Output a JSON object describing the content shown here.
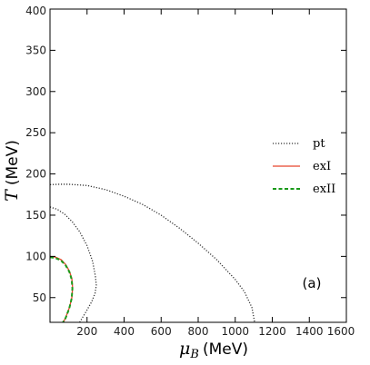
{
  "chart_data": {
    "type": "line",
    "title": "",
    "xlabel_var": "μ",
    "xlabel_sub": "B",
    "xlabel_unit": "(MeV)",
    "ylabel_var": "T",
    "ylabel_unit": "(MeV)",
    "xlim": [
      0,
      1600
    ],
    "ylim": [
      20,
      400
    ],
    "xticks": [
      200,
      400,
      600,
      800,
      1000,
      1200,
      1400,
      1600
    ],
    "yticks": [
      50,
      100,
      150,
      200,
      250,
      300,
      350,
      400
    ],
    "grid": false,
    "legend_position": "right",
    "annotation": "(a)",
    "series": [
      {
        "name": "pt",
        "color": "#333333",
        "style": "dotted",
        "points": [
          [
            0,
            187
          ],
          [
            50,
            187.5
          ],
          [
            100,
            187.5
          ],
          [
            200,
            186
          ],
          [
            300,
            181
          ],
          [
            400,
            173
          ],
          [
            500,
            163
          ],
          [
            600,
            150
          ],
          [
            700,
            134
          ],
          [
            800,
            116
          ],
          [
            900,
            96
          ],
          [
            1000,
            72
          ],
          [
            1050,
            57
          ],
          [
            1090,
            38
          ],
          [
            1105,
            20
          ]
        ]
      },
      {
        "name": "",
        "color": "#333333",
        "style": "dotted",
        "points": [
          [
            0,
            160
          ],
          [
            40,
            157
          ],
          [
            80,
            151
          ],
          [
            120,
            142
          ],
          [
            160,
            130
          ],
          [
            200,
            113
          ],
          [
            230,
            94
          ],
          [
            245,
            76
          ],
          [
            250,
            65
          ],
          [
            243,
            55
          ],
          [
            225,
            45
          ],
          [
            195,
            33
          ],
          [
            160,
            20
          ]
        ]
      },
      {
        "name": "exI",
        "color": "#e8452c",
        "style": "solid",
        "points": [
          [
            0,
            100
          ],
          [
            30,
            99
          ],
          [
            60,
            96
          ],
          [
            85,
            90
          ],
          [
            105,
            82
          ],
          [
            118,
            73
          ],
          [
            122,
            62
          ],
          [
            118,
            50
          ],
          [
            105,
            38
          ],
          [
            85,
            26
          ],
          [
            72,
            20
          ]
        ]
      },
      {
        "name": "exII",
        "color": "#1a9a1a",
        "style": "dashed",
        "points": [
          [
            0,
            99
          ],
          [
            30,
            98
          ],
          [
            60,
            95
          ],
          [
            85,
            89
          ],
          [
            105,
            81
          ],
          [
            117,
            72
          ],
          [
            121,
            61
          ],
          [
            117,
            49
          ],
          [
            104,
            37
          ],
          [
            84,
            25
          ],
          [
            70,
            20
          ]
        ]
      }
    ]
  }
}
